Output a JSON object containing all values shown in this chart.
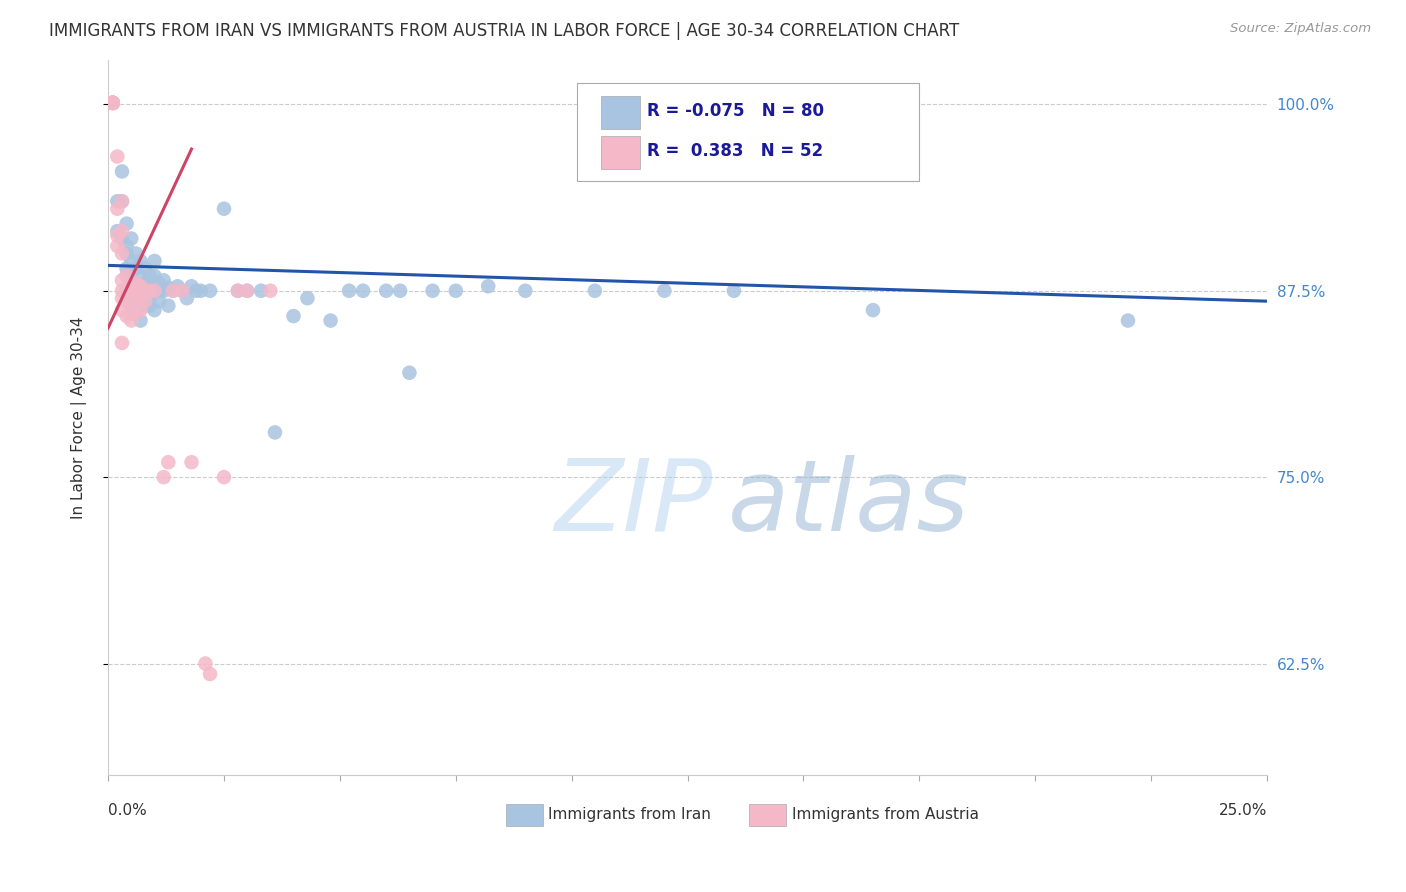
{
  "title": "IMMIGRANTS FROM IRAN VS IMMIGRANTS FROM AUSTRIA IN LABOR FORCE | AGE 30-34 CORRELATION CHART",
  "source": "Source: ZipAtlas.com",
  "ylabel": "In Labor Force | Age 30-34",
  "yticks": [
    0.625,
    0.75,
    0.875,
    1.0
  ],
  "ytick_labels": [
    "62.5%",
    "75.0%",
    "87.5%",
    "100.0%"
  ],
  "xlim": [
    0.0,
    0.25
  ],
  "ylim": [
    0.55,
    1.03
  ],
  "legend_iran_R": -0.075,
  "legend_iran_N": 80,
  "legend_austria_R": 0.383,
  "legend_austria_N": 52,
  "iran_color": "#a8c4e0",
  "austria_color": "#f4b8c8",
  "iran_line_color": "#2255aa",
  "austria_line_color": "#cc4466",
  "watermark": "ZIPatlas",
  "iran_dots": [
    [
      0.001,
      1.001
    ],
    [
      0.002,
      0.935
    ],
    [
      0.002,
      0.915
    ],
    [
      0.003,
      0.955
    ],
    [
      0.003,
      0.935
    ],
    [
      0.003,
      0.91
    ],
    [
      0.004,
      0.92
    ],
    [
      0.004,
      0.905
    ],
    [
      0.004,
      0.89
    ],
    [
      0.004,
      0.875
    ],
    [
      0.004,
      0.9
    ],
    [
      0.004,
      0.885
    ],
    [
      0.005,
      0.91
    ],
    [
      0.005,
      0.895
    ],
    [
      0.005,
      0.88
    ],
    [
      0.005,
      0.875
    ],
    [
      0.005,
      0.87
    ],
    [
      0.005,
      0.865
    ],
    [
      0.006,
      0.9
    ],
    [
      0.006,
      0.89
    ],
    [
      0.006,
      0.88
    ],
    [
      0.006,
      0.875
    ],
    [
      0.006,
      0.87
    ],
    [
      0.006,
      0.865
    ],
    [
      0.006,
      0.86
    ],
    [
      0.007,
      0.895
    ],
    [
      0.007,
      0.885
    ],
    [
      0.007,
      0.878
    ],
    [
      0.007,
      0.87
    ],
    [
      0.007,
      0.865
    ],
    [
      0.007,
      0.855
    ],
    [
      0.008,
      0.89
    ],
    [
      0.008,
      0.88
    ],
    [
      0.008,
      0.875
    ],
    [
      0.008,
      0.865
    ],
    [
      0.009,
      0.885
    ],
    [
      0.009,
      0.878
    ],
    [
      0.009,
      0.87
    ],
    [
      0.009,
      0.865
    ],
    [
      0.01,
      0.895
    ],
    [
      0.01,
      0.885
    ],
    [
      0.01,
      0.875
    ],
    [
      0.01,
      0.862
    ],
    [
      0.011,
      0.88
    ],
    [
      0.011,
      0.875
    ],
    [
      0.011,
      0.868
    ],
    [
      0.012,
      0.882
    ],
    [
      0.012,
      0.875
    ],
    [
      0.013,
      0.877
    ],
    [
      0.013,
      0.865
    ],
    [
      0.014,
      0.875
    ],
    [
      0.015,
      0.878
    ],
    [
      0.016,
      0.875
    ],
    [
      0.017,
      0.87
    ],
    [
      0.018,
      0.878
    ],
    [
      0.019,
      0.875
    ],
    [
      0.02,
      0.875
    ],
    [
      0.022,
      0.875
    ],
    [
      0.025,
      0.93
    ],
    [
      0.028,
      0.875
    ],
    [
      0.03,
      0.875
    ],
    [
      0.033,
      0.875
    ],
    [
      0.036,
      0.78
    ],
    [
      0.04,
      0.858
    ],
    [
      0.043,
      0.87
    ],
    [
      0.048,
      0.855
    ],
    [
      0.052,
      0.875
    ],
    [
      0.055,
      0.875
    ],
    [
      0.06,
      0.875
    ],
    [
      0.063,
      0.875
    ],
    [
      0.065,
      0.82
    ],
    [
      0.07,
      0.875
    ],
    [
      0.075,
      0.875
    ],
    [
      0.082,
      0.878
    ],
    [
      0.09,
      0.875
    ],
    [
      0.105,
      0.875
    ],
    [
      0.12,
      0.875
    ],
    [
      0.135,
      0.875
    ],
    [
      0.165,
      0.862
    ],
    [
      0.22,
      0.855
    ]
  ],
  "austria_dots": [
    [
      0.001,
      1.001
    ],
    [
      0.001,
      1.001
    ],
    [
      0.001,
      1.001
    ],
    [
      0.001,
      1.001
    ],
    [
      0.001,
      1.001
    ],
    [
      0.001,
      1.001
    ],
    [
      0.001,
      1.001
    ],
    [
      0.001,
      1.001
    ],
    [
      0.001,
      1.001
    ],
    [
      0.001,
      1.001
    ],
    [
      0.002,
      0.965
    ],
    [
      0.002,
      0.93
    ],
    [
      0.002,
      0.912
    ],
    [
      0.002,
      0.905
    ],
    [
      0.003,
      0.935
    ],
    [
      0.003,
      0.915
    ],
    [
      0.003,
      0.9
    ],
    [
      0.003,
      0.882
    ],
    [
      0.003,
      0.875
    ],
    [
      0.003,
      0.87
    ],
    [
      0.003,
      0.862
    ],
    [
      0.003,
      0.84
    ],
    [
      0.004,
      0.885
    ],
    [
      0.004,
      0.875
    ],
    [
      0.004,
      0.868
    ],
    [
      0.004,
      0.858
    ],
    [
      0.005,
      0.878
    ],
    [
      0.005,
      0.87
    ],
    [
      0.005,
      0.862
    ],
    [
      0.005,
      0.855
    ],
    [
      0.006,
      0.88
    ],
    [
      0.006,
      0.875
    ],
    [
      0.006,
      0.87
    ],
    [
      0.006,
      0.86
    ],
    [
      0.007,
      0.878
    ],
    [
      0.007,
      0.87
    ],
    [
      0.007,
      0.862
    ],
    [
      0.008,
      0.875
    ],
    [
      0.008,
      0.868
    ],
    [
      0.009,
      0.875
    ],
    [
      0.01,
      0.875
    ],
    [
      0.012,
      0.75
    ],
    [
      0.013,
      0.76
    ],
    [
      0.014,
      0.875
    ],
    [
      0.016,
      0.875
    ],
    [
      0.018,
      0.76
    ],
    [
      0.021,
      0.625
    ],
    [
      0.022,
      0.618
    ],
    [
      0.025,
      0.75
    ],
    [
      0.028,
      0.875
    ],
    [
      0.03,
      0.875
    ],
    [
      0.035,
      0.875
    ]
  ],
  "iran_trend": [
    0.0,
    0.25,
    0.892,
    0.868
  ],
  "austria_trend": [
    0.0,
    0.018,
    0.85,
    0.97
  ]
}
